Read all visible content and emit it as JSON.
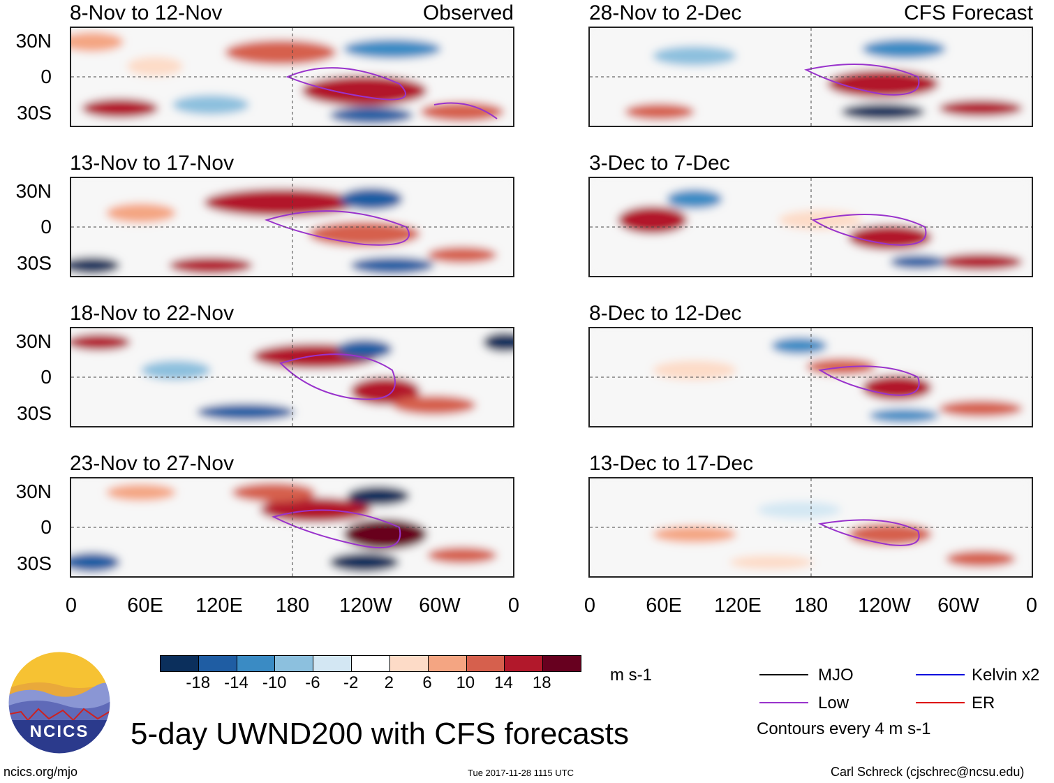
{
  "colors": {
    "mjo": "#000000",
    "low": "#9933cc",
    "kelvin": "#0000dd",
    "er": "#dd0000",
    "frame": "#222222",
    "land": "#666666"
  },
  "panel_labels": {
    "observed": "Observed",
    "forecast": "CFS Forecast"
  },
  "panels_left": [
    {
      "title": "8-Nov to 12-Nov"
    },
    {
      "title": "13-Nov to 17-Nov"
    },
    {
      "title": "18-Nov to 22-Nov"
    },
    {
      "title": "23-Nov to 27-Nov"
    }
  ],
  "panels_right": [
    {
      "title": "28-Nov to 2-Dec"
    },
    {
      "title": "3-Dec to 7-Dec"
    },
    {
      "title": "8-Dec to 12-Dec"
    },
    {
      "title": "13-Dec to 17-Dec"
    }
  ],
  "lat_labels": [
    "30N",
    "0",
    "30S"
  ],
  "lon_labels": [
    "0",
    "60E",
    "120E",
    "180",
    "120W",
    "60W",
    "0"
  ],
  "colorbar": {
    "colors": [
      "#0b2f5c",
      "#1f5da3",
      "#3a8bc4",
      "#8cc0de",
      "#d3e7f3",
      "#ffffff",
      "#fddbc7",
      "#f4a582",
      "#d6604d",
      "#b2182b",
      "#67001f"
    ],
    "labels": [
      "-18",
      "-14",
      "-10",
      "-6",
      "-2",
      "2",
      "6",
      "10",
      "14",
      "18"
    ],
    "unit": "m s-1"
  },
  "legend": {
    "mjo": "MJO",
    "kelvin": "Kelvin x2",
    "low": "Low",
    "er": "ER",
    "contours": "Contours every 4 m s-1"
  },
  "main_title": "5-day UWND200 with CFS forecasts",
  "logo_text": "NCICS",
  "footer": {
    "url": "ncics.org/mjo",
    "timestamp": "Tue 2017-11-28 1115 UTC",
    "credit": "Carl Schreck (cjschrec@ncsu.edu)"
  }
}
